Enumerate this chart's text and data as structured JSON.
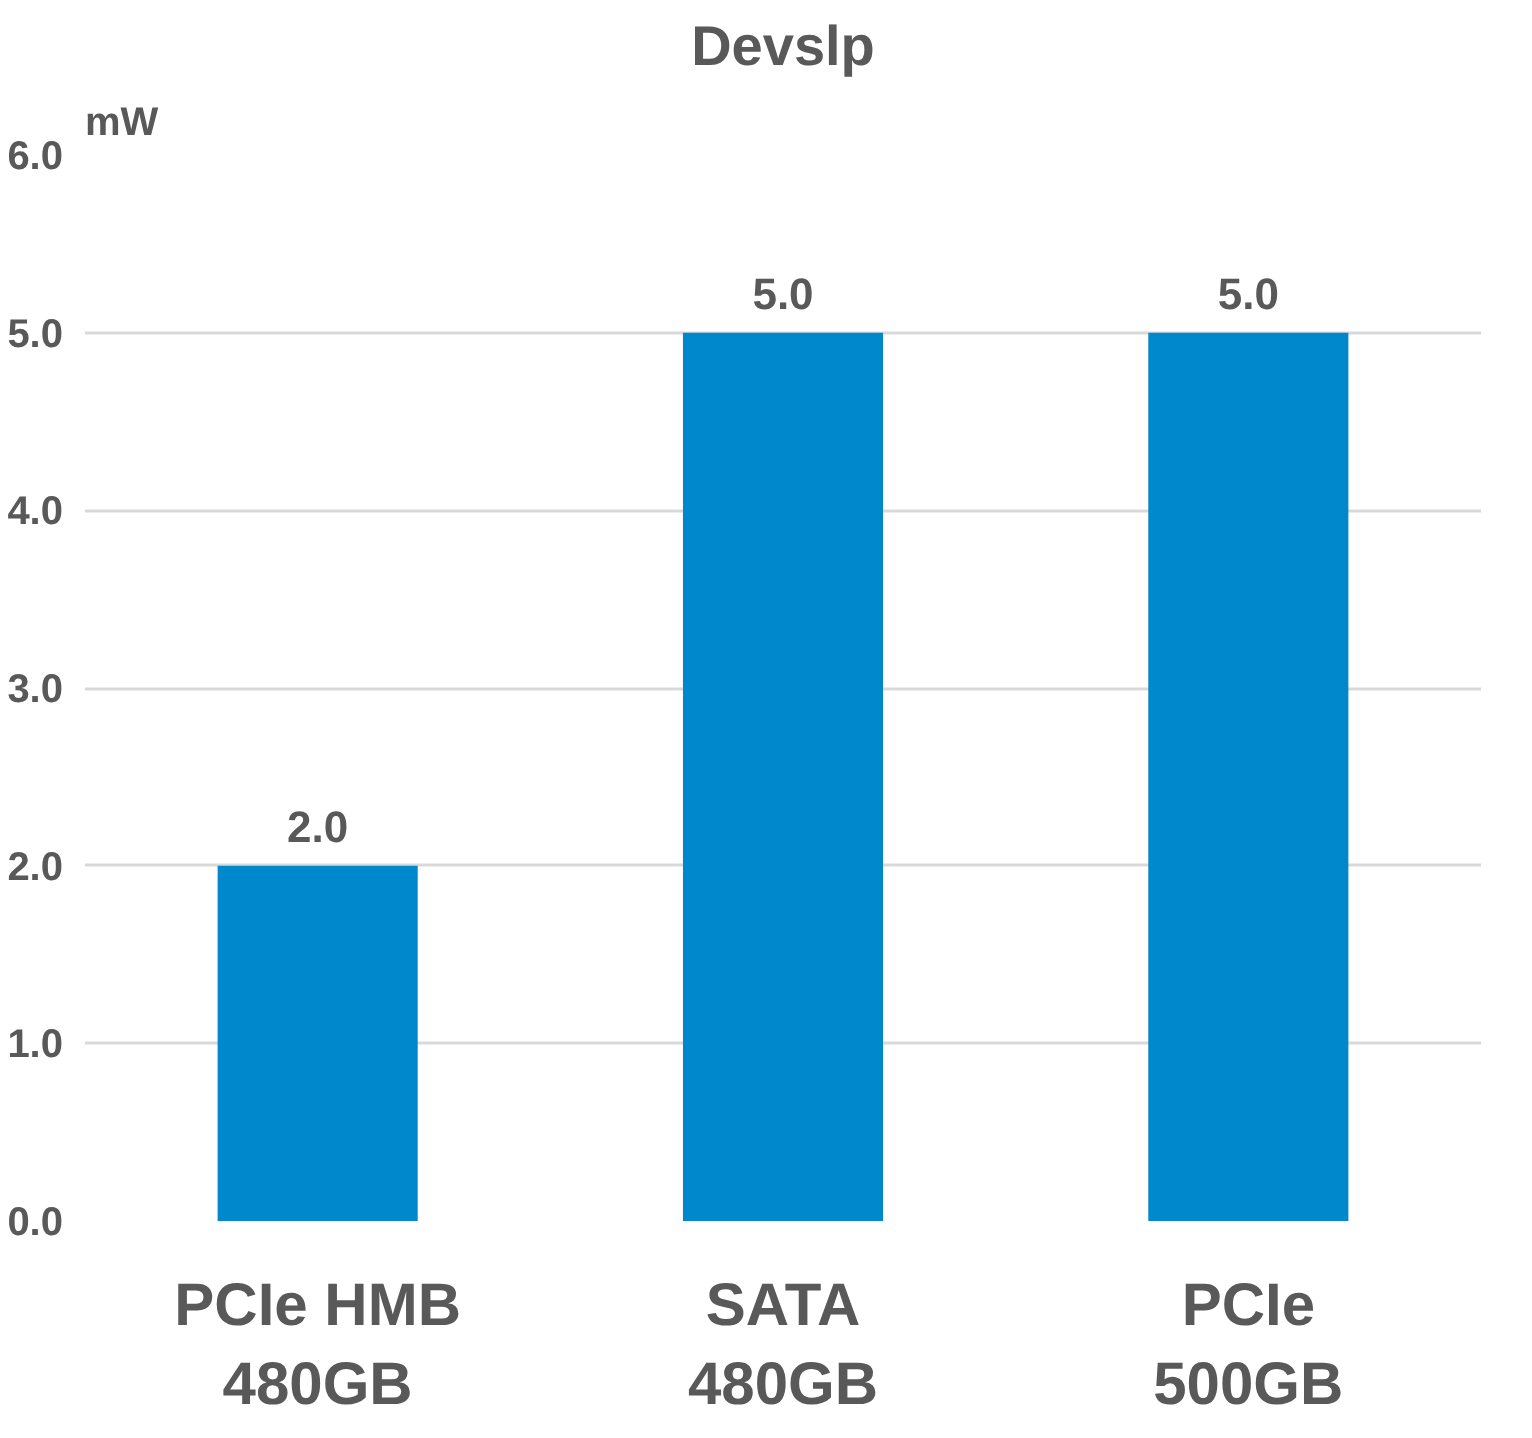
{
  "chart_data": {
    "type": "bar",
    "title": "Devslp",
    "ylabel": "mW",
    "categories": [
      "PCIe HMB\n480GB",
      "SATA\n480GB",
      "PCIe\n500GB"
    ],
    "values": [
      2.0,
      5.0,
      5.0
    ],
    "color": "#0088cc",
    "value_labels": [
      "2.0",
      "5.0",
      "5.0"
    ],
    "ylim": [
      0,
      6
    ],
    "yticks": [
      {
        "value": 0,
        "label": "0.0"
      },
      {
        "value": 1,
        "label": "1.0"
      },
      {
        "value": 2,
        "label": "2.0"
      },
      {
        "value": 3,
        "label": "3.0"
      },
      {
        "value": 4,
        "label": "4.0"
      },
      {
        "value": 5,
        "label": "5.0"
      },
      {
        "value": 6,
        "label": "6.0"
      }
    ],
    "grid": "y"
  }
}
